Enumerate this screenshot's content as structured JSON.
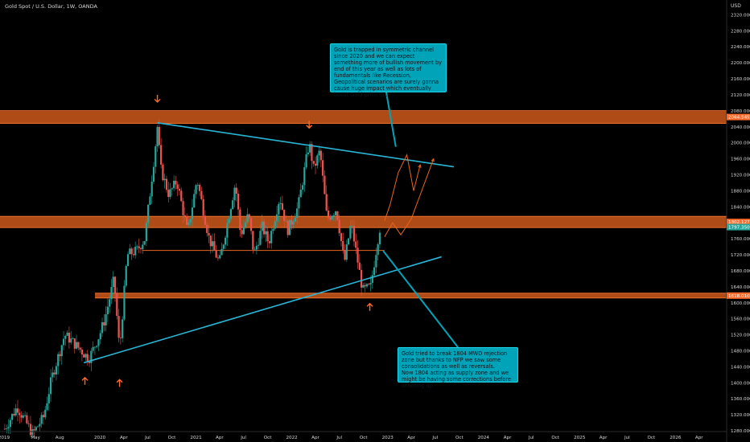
{
  "header": {
    "symbol_title": "Gold Spot / U.S. Dollar, 1W, OANDA",
    "currency": "USD"
  },
  "annotations": {
    "top_note": "Gold is trapped in symmetric channel since 2020 and we can expect something more of bullish movement by end of this year as well as lots of fundamentals  like Recession, Geopolitical scenarios are surely gonna cause huge impact which eventually boost Gold price up.",
    "bottom_note": "Gold tried to break 1804 MWD rejection zone but thanks to NFP we saw some consolidations as well as reversals.\nNow 1804 acting as supply zone and we might be having some corrections before shooting up."
  },
  "colors": {
    "background": "#000000",
    "bull_candle": "#26a69a",
    "bear_candle": "#ef5350",
    "trendline": "#29b6d6",
    "zone": "#e8641e",
    "projection": "#e8641e",
    "note_bg": "#00a3b8",
    "axis_text": "#d9d9d9"
  },
  "chart_data": {
    "type": "candlestick",
    "timeframe": "1W",
    "y_axis": {
      "range": [
        1252,
        2357
      ],
      "ticks": [
        1280,
        1320,
        1360,
        1400,
        1440,
        1480,
        1520,
        1560,
        1600,
        1640,
        1680,
        1720,
        1760,
        1800,
        1840,
        1880,
        1920,
        1960,
        2000,
        2040,
        2080,
        2120,
        2160,
        2200,
        2240,
        2280,
        2320
      ]
    },
    "x_axis": {
      "range": [
        "2019-01-01",
        "2026-07-15"
      ],
      "ticks": [
        {
          "date": "2019-01-01",
          "label": "2019"
        },
        {
          "date": "2019-05-01",
          "label": "May"
        },
        {
          "date": "2019-08-01",
          "label": "Aug"
        },
        {
          "date": "2020-01-01",
          "label": "2020"
        },
        {
          "date": "2020-04-01",
          "label": "Apr"
        },
        {
          "date": "2020-07-01",
          "label": "Jul"
        },
        {
          "date": "2020-10-01",
          "label": "Oct"
        },
        {
          "date": "2021-01-01",
          "label": "2021"
        },
        {
          "date": "2021-04-01",
          "label": "Apr"
        },
        {
          "date": "2021-07-01",
          "label": "Jul"
        },
        {
          "date": "2021-10-01",
          "label": "Oct"
        },
        {
          "date": "2022-01-01",
          "label": "2022"
        },
        {
          "date": "2022-04-01",
          "label": "Apr"
        },
        {
          "date": "2022-07-01",
          "label": "Jul"
        },
        {
          "date": "2022-10-01",
          "label": "Oct"
        },
        {
          "date": "2023-01-01",
          "label": "2023"
        },
        {
          "date": "2023-04-01",
          "label": "Apr"
        },
        {
          "date": "2023-07-01",
          "label": "Jul"
        },
        {
          "date": "2023-10-01",
          "label": "Oct"
        },
        {
          "date": "2024-01-01",
          "label": "2024"
        },
        {
          "date": "2024-04-01",
          "label": "Apr"
        },
        {
          "date": "2024-07-01",
          "label": "Jul"
        },
        {
          "date": "2024-10-01",
          "label": "Oct"
        },
        {
          "date": "2025-01-01",
          "label": "2025"
        },
        {
          "date": "2025-04-01",
          "label": "Apr"
        },
        {
          "date": "2025-07-01",
          "label": "Jul"
        },
        {
          "date": "2025-10-01",
          "label": "Oct"
        },
        {
          "date": "2026-01-01",
          "label": "2026"
        },
        {
          "date": "2026-04-01",
          "label": "Apr"
        }
      ]
    },
    "price_keypoints": [
      {
        "date": "2019-01-04",
        "close": 1285
      },
      {
        "date": "2019-02-20",
        "close": 1340
      },
      {
        "date": "2019-04-20",
        "close": 1272
      },
      {
        "date": "2019-06-01",
        "close": 1315
      },
      {
        "date": "2019-07-01",
        "close": 1410
      },
      {
        "date": "2019-08-20",
        "close": 1520
      },
      {
        "date": "2019-09-15",
        "close": 1505
      },
      {
        "date": "2019-10-20",
        "close": 1482
      },
      {
        "date": "2019-11-20",
        "close": 1460
      },
      {
        "date": "2019-12-31",
        "close": 1520
      },
      {
        "date": "2020-01-20",
        "close": 1560
      },
      {
        "date": "2020-02-24",
        "close": 1660
      },
      {
        "date": "2020-03-16",
        "close": 1480
      },
      {
        "date": "2020-04-14",
        "close": 1720
      },
      {
        "date": "2020-05-20",
        "close": 1730
      },
      {
        "date": "2020-06-20",
        "close": 1760
      },
      {
        "date": "2020-07-27",
        "close": 1970
      },
      {
        "date": "2020-08-07",
        "close": 2040
      },
      {
        "date": "2020-08-20",
        "close": 1935
      },
      {
        "date": "2020-09-20",
        "close": 1870
      },
      {
        "date": "2020-10-20",
        "close": 1905
      },
      {
        "date": "2020-11-30",
        "close": 1775
      },
      {
        "date": "2021-01-05",
        "close": 1910
      },
      {
        "date": "2021-02-20",
        "close": 1760
      },
      {
        "date": "2021-03-31",
        "close": 1700
      },
      {
        "date": "2021-05-31",
        "close": 1900
      },
      {
        "date": "2021-06-20",
        "close": 1770
      },
      {
        "date": "2021-07-20",
        "close": 1820
      },
      {
        "date": "2021-08-10",
        "close": 1720
      },
      {
        "date": "2021-09-10",
        "close": 1790
      },
      {
        "date": "2021-10-05",
        "close": 1750
      },
      {
        "date": "2021-11-16",
        "close": 1865
      },
      {
        "date": "2021-12-15",
        "close": 1780
      },
      {
        "date": "2022-01-25",
        "close": 1840
      },
      {
        "date": "2022-03-08",
        "close": 2000
      },
      {
        "date": "2022-03-25",
        "close": 1935
      },
      {
        "date": "2022-04-18",
        "close": 1980
      },
      {
        "date": "2022-05-15",
        "close": 1810
      },
      {
        "date": "2022-06-20",
        "close": 1835
      },
      {
        "date": "2022-07-20",
        "close": 1700
      },
      {
        "date": "2022-08-15",
        "close": 1800
      },
      {
        "date": "2022-09-28",
        "close": 1630
      },
      {
        "date": "2022-10-28",
        "close": 1640
      },
      {
        "date": "2022-11-25",
        "close": 1760
      },
      {
        "date": "2022-12-05",
        "close": 1797
      }
    ],
    "horizontal_zones": [
      {
        "price": 2064.5,
        "label": "2064.545",
        "thickness": 16
      },
      {
        "price": 1802.1,
        "label": "1802.127",
        "thickness": 14
      },
      {
        "price": 1618,
        "label": "1618.010",
        "thickness": 6
      }
    ],
    "current_price": {
      "price": 1797.3,
      "label": "1797.350"
    },
    "horizontal_line": {
      "price": 1731,
      "from": "2020-06-10",
      "to": "2022-12-20"
    },
    "trendlines": [
      {
        "name": "upper",
        "points": [
          {
            "date": "2020-08-07",
            "price": 2050
          },
          {
            "date": "2023-09-10",
            "price": 1940
          }
        ]
      },
      {
        "name": "lower",
        "points": [
          {
            "date": "2019-11-01",
            "price": 1450
          },
          {
            "date": "2023-07-25",
            "price": 1715
          }
        ]
      }
    ],
    "annotation_arrows": [
      {
        "date": "2020-08-07",
        "price": 2110,
        "direction": "down"
      },
      {
        "date": "2022-03-08",
        "price": 2045,
        "direction": "down"
      },
      {
        "date": "2019-11-05",
        "price": 1405,
        "direction": "up"
      },
      {
        "date": "2020-03-16",
        "price": 1400,
        "direction": "up"
      },
      {
        "date": "2022-10-25",
        "price": 1590,
        "direction": "up"
      }
    ],
    "projection_paths": [
      [
        {
          "date": "2022-12-20",
          "price": 1805
        },
        {
          "date": "2023-01-10",
          "price": 1845
        },
        {
          "date": "2023-02-10",
          "price": 1925
        },
        {
          "date": "2023-03-15",
          "price": 1970
        },
        {
          "date": "2023-04-10",
          "price": 1880
        },
        {
          "date": "2023-05-05",
          "price": 1945
        }
      ],
      [
        {
          "date": "2022-12-20",
          "price": 1765
        },
        {
          "date": "2023-01-20",
          "price": 1800
        },
        {
          "date": "2023-02-20",
          "price": 1770
        },
        {
          "date": "2023-04-01",
          "price": 1810
        },
        {
          "date": "2023-06-25",
          "price": 1960
        }
      ]
    ],
    "callouts": [
      {
        "target": {
          "date": "2023-02-01",
          "price": 1990
        }
      },
      {
        "target": {
          "date": "2022-12-15",
          "price": 1730
        }
      }
    ]
  }
}
